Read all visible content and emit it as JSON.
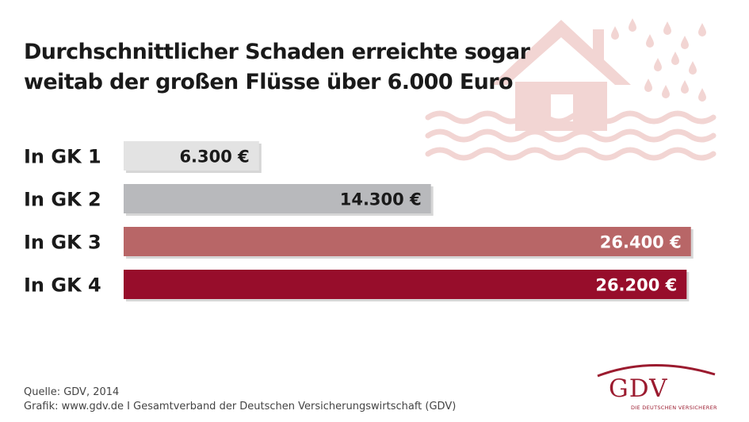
{
  "title": {
    "line1": "Durchschnittlicher Schaden erreichte sogar",
    "line2": "weitab der großen Flüsse über 6.000 Euro"
  },
  "chart_data": {
    "type": "bar",
    "orientation": "horizontal",
    "title": "Durchschnittlicher Schaden erreichte sogar weitab der großen Flüsse über 6.000 Euro",
    "categories": [
      "In GK 1",
      "In GK 2",
      "In GK 3",
      "In GK 4"
    ],
    "values": [
      6300,
      14300,
      26400,
      26200
    ],
    "value_labels": [
      "6.300 €",
      "14.300 €",
      "26.400 €",
      "26.200 €"
    ],
    "bar_colors": [
      "#e3e3e3",
      "#b8b9bc",
      "#b86667",
      "#970d2b"
    ],
    "value_label_colors": [
      "#1a1a1a",
      "#1a1a1a",
      "#ffffff",
      "#ffffff"
    ],
    "xlim": [
      0,
      27000
    ],
    "grid": false,
    "legend": "none"
  },
  "footer": {
    "source": "Quelle: GDV, 2014",
    "credit": "Grafik: www.gdv.de I Gesamtverband der Deutschen Versicherungswirtschaft (GDV)"
  },
  "logo": {
    "text": "GDV",
    "tagline": "DIE DEUTSCHEN VERSICHERER"
  },
  "colors": {
    "illustration": "#f2d5d3",
    "brand": "#9b1b2f"
  },
  "illustration_icon": "flooded-house-icon"
}
